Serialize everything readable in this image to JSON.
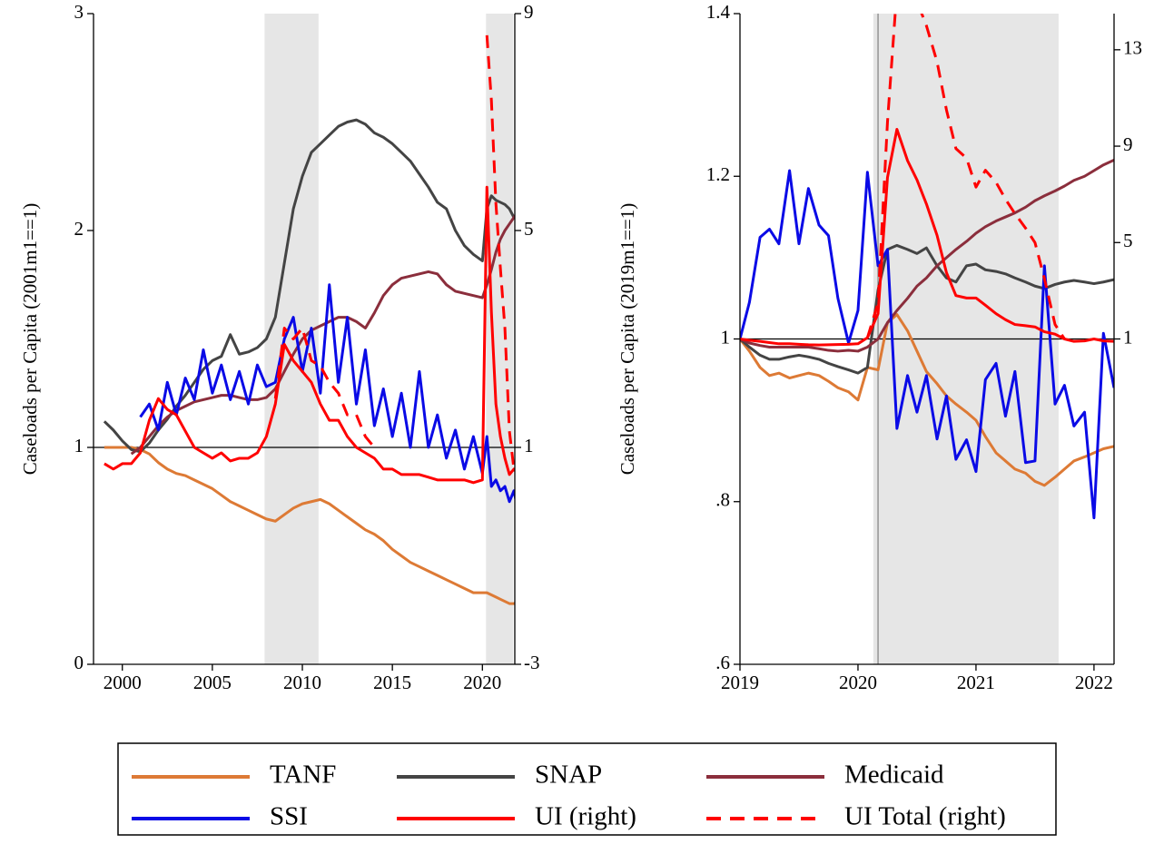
{
  "chart_data": [
    {
      "type": "line",
      "y_label": "Caseloads per Capita (2001m1==1)",
      "x": [
        1999,
        1999.5,
        2000,
        2000.5,
        2001,
        2001.5,
        2002,
        2002.5,
        2003,
        2003.5,
        2004,
        2004.5,
        2005,
        2005.5,
        2006,
        2006.5,
        2007,
        2007.5,
        2008,
        2008.5,
        2009,
        2009.5,
        2010,
        2010.5,
        2011,
        2011.5,
        2012,
        2012.5,
        2013,
        2013.5,
        2014,
        2014.5,
        2015,
        2015.5,
        2016,
        2016.5,
        2017,
        2017.5,
        2018,
        2018.5,
        2019,
        2019.5,
        2020,
        2020.25,
        2020.5,
        2020.75,
        2021,
        2021.25,
        2021.5,
        2021.75,
        2022
      ],
      "xlim": [
        1998.4,
        2021.8
      ],
      "xticks": [
        2000,
        2005,
        2010,
        2015,
        2020
      ],
      "ylim": [
        0,
        3
      ],
      "yticks": [
        0,
        1,
        2,
        3
      ],
      "y2lim": [
        -3,
        9
      ],
      "y2ticks": [
        -3,
        1,
        5,
        9
      ],
      "hline": 1,
      "shaded": [
        [
          2007.9,
          2010.9
        ],
        [
          2020.2,
          2021.7
        ]
      ],
      "series": [
        {
          "name": "TANF",
          "color": "#dd7a35",
          "values": [
            1.0,
            1.0,
            1.0,
            1.0,
            0.99,
            0.97,
            0.93,
            0.9,
            0.88,
            0.87,
            0.85,
            0.83,
            0.81,
            0.78,
            0.75,
            0.73,
            0.71,
            0.69,
            0.67,
            0.66,
            0.69,
            0.72,
            0.74,
            0.75,
            0.76,
            0.74,
            0.71,
            0.68,
            0.65,
            0.62,
            0.6,
            0.57,
            0.53,
            0.5,
            0.47,
            0.45,
            0.43,
            0.41,
            0.39,
            0.37,
            0.35,
            0.33,
            0.33,
            0.33,
            0.32,
            0.31,
            0.3,
            0.29,
            0.28,
            0.28,
            0.29
          ]
        },
        {
          "name": "SNAP",
          "color": "#444444",
          "values": [
            1.12,
            1.08,
            1.03,
            0.99,
            0.98,
            1.02,
            1.08,
            1.13,
            1.19,
            1.24,
            1.3,
            1.36,
            1.4,
            1.42,
            1.52,
            1.43,
            1.44,
            1.46,
            1.5,
            1.6,
            1.85,
            2.1,
            2.25,
            2.36,
            2.4,
            2.44,
            2.48,
            2.5,
            2.51,
            2.49,
            2.45,
            2.43,
            2.4,
            2.36,
            2.32,
            2.26,
            2.2,
            2.13,
            2.1,
            2.0,
            1.93,
            1.89,
            1.86,
            2.1,
            2.16,
            2.14,
            2.13,
            2.12,
            2.1,
            2.06,
            2.08
          ]
        },
        {
          "name": "Medicaid",
          "color": "#8b2e3c",
          "values": [
            null,
            null,
            null,
            0.97,
            1.0,
            1.05,
            1.1,
            1.14,
            1.17,
            1.19,
            1.21,
            1.22,
            1.23,
            1.24,
            1.24,
            1.23,
            1.22,
            1.22,
            1.23,
            1.27,
            1.35,
            1.43,
            1.5,
            1.54,
            1.56,
            1.58,
            1.6,
            1.6,
            1.58,
            1.55,
            1.62,
            1.7,
            1.75,
            1.78,
            1.79,
            1.8,
            1.81,
            1.8,
            1.75,
            1.72,
            1.71,
            1.7,
            1.69,
            1.75,
            1.82,
            1.9,
            1.96,
            2.0,
            2.03,
            2.06,
            2.09
          ]
        },
        {
          "name": "SSI",
          "color": "#0a0ae6",
          "values": [
            null,
            null,
            null,
            null,
            1.14,
            1.2,
            1.08,
            1.3,
            1.15,
            1.32,
            1.22,
            1.45,
            1.25,
            1.38,
            1.22,
            1.35,
            1.2,
            1.38,
            1.28,
            1.3,
            1.5,
            1.6,
            1.35,
            1.55,
            1.25,
            1.75,
            1.3,
            1.6,
            1.2,
            1.45,
            1.1,
            1.27,
            1.05,
            1.25,
            1.0,
            1.35,
            1.0,
            1.15,
            0.95,
            1.08,
            0.9,
            1.05,
            0.88,
            1.05,
            0.82,
            0.85,
            0.8,
            0.82,
            0.75,
            0.8,
            0.7
          ]
        },
        {
          "name": "UI (right)",
          "color": "#ff0000",
          "axis": "y2",
          "values": [
            0.7,
            0.6,
            0.7,
            0.7,
            0.9,
            1.5,
            1.9,
            1.7,
            1.6,
            1.3,
            1.0,
            0.9,
            0.8,
            0.9,
            0.75,
            0.8,
            0.8,
            0.9,
            1.2,
            1.8,
            2.9,
            2.6,
            2.4,
            2.2,
            1.8,
            1.5,
            1.5,
            1.2,
            1.0,
            0.9,
            0.8,
            0.6,
            0.6,
            0.5,
            0.5,
            0.5,
            0.45,
            0.4,
            0.4,
            0.4,
            0.4,
            0.35,
            0.4,
            5.8,
            3.5,
            1.8,
            1.2,
            0.8,
            0.5,
            0.6,
            0.5
          ]
        },
        {
          "name": "UI Total (right)",
          "color": "#ff0000",
          "axis": "y2",
          "dash": true,
          "values": [
            null,
            null,
            null,
            null,
            null,
            null,
            null,
            null,
            null,
            null,
            null,
            null,
            null,
            null,
            null,
            null,
            null,
            null,
            null,
            1.9,
            3.2,
            3.0,
            3.2,
            2.6,
            2.5,
            2.2,
            2.0,
            1.6,
            1.6,
            1.2,
            1.0,
            null,
            null,
            null,
            null,
            null,
            null,
            null,
            null,
            null,
            null,
            null,
            null,
            8.6,
            7.4,
            5.5,
            4.3,
            3.2,
            1.3,
            0.6,
            null
          ]
        }
      ]
    },
    {
      "type": "line",
      "y_label": "Caseloads per Capita (2019m1==1)",
      "x": [
        2019,
        2019.08,
        2019.17,
        2019.25,
        2019.33,
        2019.42,
        2019.5,
        2019.58,
        2019.67,
        2019.75,
        2019.83,
        2019.92,
        2020,
        2020.08,
        2020.17,
        2020.25,
        2020.33,
        2020.42,
        2020.5,
        2020.58,
        2020.67,
        2020.75,
        2020.83,
        2020.92,
        2021,
        2021.08,
        2021.17,
        2021.25,
        2021.33,
        2021.42,
        2021.5,
        2021.58,
        2021.67,
        2021.75,
        2021.83,
        2021.92,
        2022,
        2022.08,
        2022.17
      ],
      "xlim": [
        2019,
        2022.17
      ],
      "xticks": [
        2019,
        2020,
        2021,
        2022
      ],
      "ylim": [
        0.6,
        1.4
      ],
      "yticks": [
        {
          "value": 0.6,
          "label": ".6"
        },
        {
          "value": 0.8,
          "label": ".8"
        },
        1,
        1.2,
        1.4
      ],
      "y2lim": [
        -12.5,
        14.5
      ],
      "y2ticks": [
        1,
        5,
        9,
        13
      ],
      "hline": 1,
      "vline": 2020.17,
      "shaded": [
        [
          2020.13,
          2021.7
        ]
      ],
      "series": [
        {
          "name": "TANF",
          "color": "#dd7a35",
          "values": [
            1.0,
            0.985,
            0.965,
            0.955,
            0.958,
            0.952,
            0.955,
            0.958,
            0.955,
            0.948,
            0.94,
            0.935,
            0.925,
            0.965,
            0.962,
            1.02,
            1.03,
            1.01,
            0.985,
            0.96,
            0.945,
            0.93,
            0.92,
            0.91,
            0.9,
            0.88,
            0.86,
            0.85,
            0.84,
            0.835,
            0.825,
            0.82,
            0.83,
            0.84,
            0.85,
            0.855,
            0.86,
            0.865,
            0.868
          ]
        },
        {
          "name": "SNAP",
          "color": "#444444",
          "values": [
            1.0,
            0.99,
            0.98,
            0.975,
            0.975,
            0.978,
            0.98,
            0.978,
            0.975,
            0.97,
            0.966,
            0.962,
            0.958,
            0.965,
            1.06,
            1.11,
            1.115,
            1.11,
            1.105,
            1.112,
            1.09,
            1.075,
            1.07,
            1.09,
            1.092,
            1.085,
            1.083,
            1.08,
            1.075,
            1.07,
            1.065,
            1.062,
            1.067,
            1.07,
            1.072,
            1.07,
            1.068,
            1.07,
            1.073
          ]
        },
        {
          "name": "Medicaid",
          "color": "#8b2e3c",
          "values": [
            1.0,
            0.995,
            0.992,
            0.99,
            0.99,
            0.99,
            0.99,
            0.99,
            0.988,
            0.986,
            0.985,
            0.986,
            0.985,
            0.99,
            1.0,
            1.02,
            1.035,
            1.05,
            1.065,
            1.075,
            1.09,
            1.1,
            1.11,
            1.12,
            1.13,
            1.138,
            1.145,
            1.15,
            1.155,
            1.162,
            1.17,
            1.176,
            1.182,
            1.188,
            1.195,
            1.2,
            1.207,
            1.214,
            1.22
          ]
        },
        {
          "name": "SSI",
          "color": "#0a0ae6",
          "values": [
            1.0,
            1.045,
            1.125,
            1.135,
            1.117,
            1.207,
            1.117,
            1.185,
            1.14,
            1.127,
            1.05,
            0.995,
            1.035,
            1.205,
            1.09,
            1.11,
            0.89,
            0.955,
            0.91,
            0.955,
            0.877,
            0.93,
            0.852,
            0.876,
            0.837,
            0.95,
            0.97,
            0.905,
            0.96,
            0.848,
            0.85,
            1.09,
            0.92,
            0.943,
            0.893,
            0.91,
            0.78,
            1.007,
            0.94
          ]
        },
        {
          "name": "UI (right)",
          "color": "#ff0000",
          "axis": "y2",
          "values": [
            1.0,
            0.95,
            0.9,
            0.85,
            0.8,
            0.8,
            0.78,
            0.76,
            0.75,
            0.76,
            0.77,
            0.78,
            0.8,
            1.05,
            2.05,
            7.7,
            9.7,
            8.4,
            7.6,
            6.6,
            5.3,
            3.75,
            2.8,
            2.7,
            2.7,
            2.4,
            2.05,
            1.8,
            1.6,
            1.55,
            1.5,
            1.3,
            1.2,
            1.0,
            0.9,
            0.92,
            1.0,
            0.92,
            0.9
          ]
        },
        {
          "name": "UI Total (right)",
          "color": "#ff0000",
          "axis": "y2",
          "dash": true,
          "values": [
            null,
            null,
            null,
            null,
            null,
            null,
            null,
            null,
            null,
            null,
            null,
            null,
            null,
            1.05,
            2.5,
            10.0,
            15.5,
            16.0,
            15.0,
            14.0,
            12.5,
            10.5,
            8.9,
            8.5,
            7.3,
            8.0,
            7.5,
            6.8,
            6.2,
            5.6,
            5.0,
            3.5,
            1.6,
            1.0,
            null,
            null,
            null,
            null,
            null
          ]
        }
      ]
    }
  ]
}
